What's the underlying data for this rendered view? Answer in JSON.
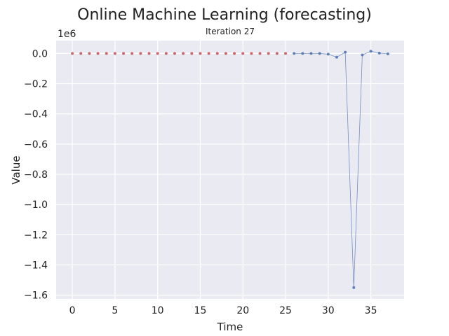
{
  "chart_data": {
    "type": "scatter",
    "title": "Online Machine Learning (forecasting)",
    "subtitle": "Iteration 27",
    "xlabel": "Time",
    "ylabel": "Value",
    "y_offset_label": "1e6",
    "xlim": [
      -1.9,
      38.9
    ],
    "ylim": [
      -1.625,
      0.085
    ],
    "y_unit_scale": 1000000,
    "x_ticks": [
      0,
      5,
      10,
      15,
      20,
      25,
      30,
      35
    ],
    "x_tick_labels": [
      "0",
      "5",
      "10",
      "15",
      "20",
      "25",
      "30",
      "35"
    ],
    "y_ticks": [
      0.0,
      -0.2,
      -0.4,
      -0.6,
      -0.8,
      -1.0,
      -1.2,
      -1.4,
      -1.6
    ],
    "y_tick_labels": [
      "0.0",
      "−0.2",
      "−0.4",
      "−0.6",
      "−0.8",
      "−1.0",
      "−1.2",
      "−1.4",
      "−1.6"
    ],
    "grid": true,
    "legend": "none",
    "series": [
      {
        "color": "#c44e52",
        "style": "markers",
        "x": [
          0,
          1,
          2,
          3,
          4,
          5,
          6,
          7,
          8,
          9,
          10,
          11,
          12,
          13,
          14,
          15,
          16,
          17,
          18,
          19,
          20,
          21,
          22,
          23,
          24,
          25
        ],
        "y": [
          0,
          0,
          0,
          0,
          0,
          0,
          0,
          0,
          0,
          0,
          0,
          0,
          0,
          0,
          0,
          0,
          0,
          0,
          0,
          0,
          0,
          0,
          0,
          0,
          0,
          0
        ]
      },
      {
        "color": "#4c72b0",
        "style": "line+markers",
        "x": [
          26,
          27,
          28,
          29,
          30,
          31,
          32,
          33,
          34,
          35,
          36,
          37
        ],
        "y": [
          0,
          0,
          0,
          0,
          -0.005,
          -0.025,
          0.008,
          -1.55,
          -0.01,
          0.015,
          0.002,
          -0.003
        ]
      }
    ]
  }
}
